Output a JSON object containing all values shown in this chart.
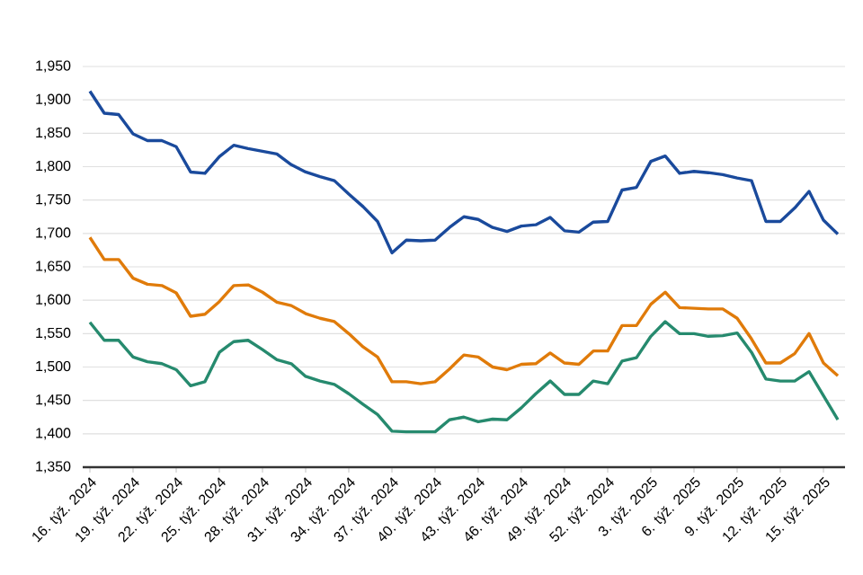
{
  "chart_data": {
    "type": "line",
    "categories": [
      "16. týž. 2024",
      null,
      null,
      "19. týž. 2024",
      null,
      null,
      "22. týž. 2024",
      null,
      null,
      "25. týž. 2024",
      null,
      null,
      "28. týž. 2024",
      null,
      null,
      "31. týž. 2024",
      null,
      null,
      "34. týž. 2024",
      null,
      null,
      "37. týž. 2024",
      null,
      null,
      "40. týž. 2024",
      null,
      null,
      "43. týž. 2024",
      null,
      null,
      "46. týž. 2024",
      null,
      null,
      "49. týž. 2024",
      null,
      null,
      "52. týž. 2024",
      null,
      null,
      "3. týž. 2025",
      null,
      null,
      "6. týž. 2025",
      null,
      null,
      "9. týž. 2025",
      null,
      null,
      "12. týž. 2025",
      null,
      null,
      "15. týž. 2025",
      null
    ],
    "series": [
      {
        "color": "#1a4a9c",
        "values": [
          1913,
          1880,
          1878,
          1849,
          1839,
          1839,
          1830,
          1792,
          1790,
          1815,
          1832,
          1827,
          1823,
          1819,
          1803,
          1792,
          1785,
          1779,
          1759,
          1740,
          1718,
          1671,
          1690,
          1689,
          1690,
          1709,
          1725,
          1721,
          1709,
          1703,
          1711,
          1713,
          1724,
          1704,
          1702,
          1717,
          1718,
          1765,
          1769,
          1808,
          1816,
          1790,
          1793,
          1791,
          1788,
          1783,
          1779,
          1718,
          1718,
          1738,
          1763,
          1720,
          1699
        ]
      },
      {
        "color": "#e07b0a",
        "values": [
          1694,
          1661,
          1661,
          1633,
          1624,
          1622,
          1611,
          1576,
          1579,
          1598,
          1622,
          1623,
          1612,
          1597,
          1592,
          1580,
          1573,
          1568,
          1550,
          1530,
          1515,
          1478,
          1478,
          1475,
          1478,
          1497,
          1518,
          1515,
          1500,
          1496,
          1504,
          1505,
          1521,
          1506,
          1504,
          1524,
          1524,
          1562,
          1562,
          1594,
          1612,
          1589,
          1588,
          1587,
          1587,
          1573,
          1542,
          1506,
          1506,
          1520,
          1550,
          1506,
          1487
        ]
      },
      {
        "color": "#268a6e",
        "values": [
          1567,
          1540,
          1540,
          1515,
          1508,
          1505,
          1496,
          1472,
          1478,
          1522,
          1538,
          1540,
          1526,
          1511,
          1505,
          1486,
          1479,
          1474,
          1460,
          1444,
          1429,
          1404,
          1403,
          1403,
          1403,
          1421,
          1425,
          1418,
          1422,
          1421,
          1439,
          1460,
          1479,
          1459,
          1459,
          1479,
          1475,
          1509,
          1514,
          1546,
          1568,
          1550,
          1550,
          1546,
          1547,
          1551,
          1522,
          1482,
          1479,
          1479,
          1493,
          1457,
          1421
        ]
      }
    ],
    "ylim": [
      1350,
      1950
    ],
    "yticks": [
      {
        "value": 1350,
        "label": "1,350"
      },
      {
        "value": 1400,
        "label": "1,400"
      },
      {
        "value": 1450,
        "label": "1,450"
      },
      {
        "value": 1500,
        "label": "1,500"
      },
      {
        "value": 1550,
        "label": "1,550"
      },
      {
        "value": 1600,
        "label": "1,600"
      },
      {
        "value": 1650,
        "label": "1,650"
      },
      {
        "value": 1700,
        "label": "1,700"
      },
      {
        "value": 1750,
        "label": "1,750"
      },
      {
        "value": 1800,
        "label": "1,800"
      },
      {
        "value": 1850,
        "label": "1,850"
      },
      {
        "value": 1900,
        "label": "1,900"
      },
      {
        "value": 1950,
        "label": "1,950"
      }
    ],
    "grid": "y"
  }
}
